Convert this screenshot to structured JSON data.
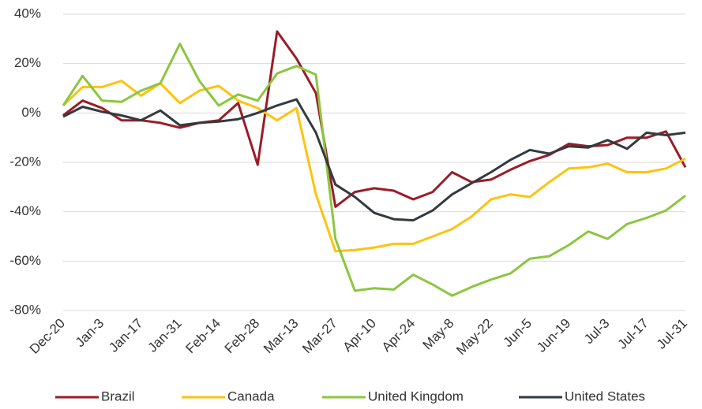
{
  "chart_data": {
    "type": "line",
    "categories": [
      "Dec-20",
      null,
      "Jan-3",
      null,
      "Jan-17",
      null,
      "Jan-31",
      null,
      "Feb-14",
      null,
      "Feb-28",
      null,
      "Mar-13",
      null,
      "Mar-27",
      null,
      "Apr-10",
      null,
      "Apr-24",
      null,
      "May-8",
      null,
      "May-22",
      null,
      "Jun-5",
      null,
      "Jun-19",
      null,
      "Jul-3",
      null,
      "Jul-17",
      null,
      "Jul-31"
    ],
    "series": [
      {
        "name": "Brazil",
        "color": "#9b1c27",
        "values": [
          -1,
          5,
          2,
          -3,
          -3,
          -4,
          -6,
          -4,
          -3,
          4,
          -21,
          33,
          22,
          8,
          -38,
          -32,
          -30.5,
          -31.5,
          -35,
          -32,
          -24,
          -28,
          -27,
          -23,
          -19.5,
          -17,
          -12.5,
          -13.5,
          -13,
          -10,
          -10,
          -7.5,
          -22
        ]
      },
      {
        "name": "Canada",
        "color": "#ffc20e",
        "values": [
          3,
          10.5,
          10.5,
          13,
          7,
          12,
          4,
          9,
          11,
          5,
          2,
          -3,
          2,
          -33,
          -56,
          -55.5,
          -54.5,
          -53,
          -53,
          -50,
          -47,
          -42,
          -35,
          -33,
          -34,
          -28,
          -22.5,
          -22,
          -20.5,
          -24,
          -24,
          -22.5,
          -18.5
        ]
      },
      {
        "name": "United Kingdom",
        "color": "#8cc63f",
        "values": [
          3,
          15,
          5,
          4.5,
          9,
          12,
          28,
          13,
          3,
          7.5,
          5,
          16,
          19,
          15.5,
          -51,
          -72,
          -71,
          -71.5,
          -65.5,
          -69.5,
          -74,
          -70.5,
          -67.5,
          -65,
          -59,
          -58,
          -53.5,
          -48,
          -51,
          -45,
          -42.5,
          -39.5,
          -33.5
        ]
      },
      {
        "name": "United States",
        "color": "#333a3f",
        "values": [
          -1.5,
          2.5,
          0.5,
          -1,
          -3,
          1,
          -5,
          -4,
          -3.5,
          -2.5,
          0,
          3,
          5.5,
          -8,
          -29,
          -34,
          -40.5,
          -43,
          -43.5,
          -39.5,
          -33,
          -28.5,
          -24,
          -19,
          -15,
          -16.5,
          -13.5,
          -14,
          -11,
          -14.5,
          -8,
          -9,
          -8
        ]
      }
    ],
    "ylim": [
      -80,
      40
    ],
    "yticks": [
      {
        "value": -80,
        "label": "-80%"
      },
      {
        "value": -60,
        "label": "-60%"
      },
      {
        "value": -40,
        "label": "-40%"
      },
      {
        "value": -20,
        "label": "-20%"
      },
      {
        "value": 0,
        "label": "0%"
      },
      {
        "value": 20,
        "label": "20%"
      },
      {
        "value": 40,
        "label": "40%"
      }
    ],
    "grid": true,
    "legend": "bottom"
  }
}
